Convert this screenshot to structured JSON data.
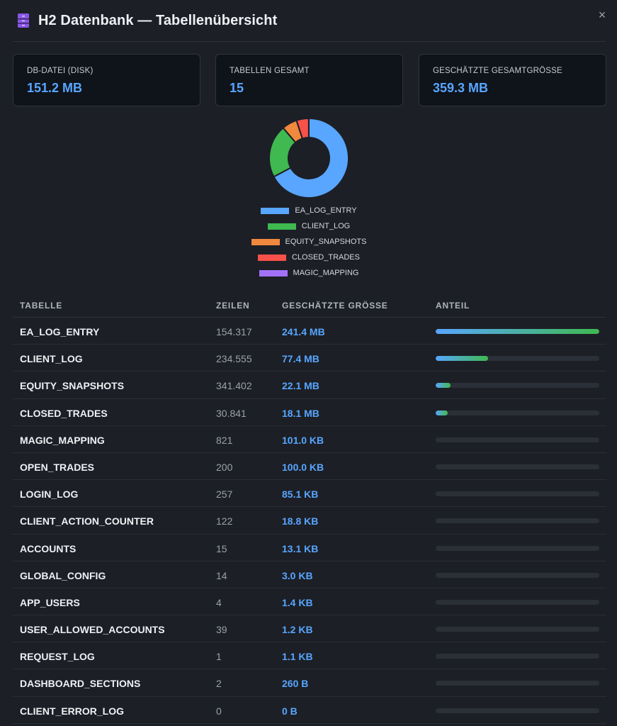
{
  "header": {
    "title": "H2 Datenbank — Tabellenübersicht",
    "close_label": "×"
  },
  "stats": [
    {
      "label": "DB-DATEI (DISK)",
      "value": "151.2 MB"
    },
    {
      "label": "TABELLEN GESAMT",
      "value": "15"
    },
    {
      "label": "GESCHÄTZTE GESAMTGRÖSSE",
      "value": "359.3 MB"
    }
  ],
  "chart_data": {
    "type": "pie",
    "donut": true,
    "categories": [
      "EA_LOG_ENTRY",
      "CLIENT_LOG",
      "EQUITY_SNAPSHOTS",
      "CLOSED_TRADES",
      "MAGIC_MAPPING"
    ],
    "values": [
      241.4,
      77.4,
      22.1,
      18.1,
      0.101
    ],
    "colors": [
      "#58a6ff",
      "#3fb950",
      "#f0883e",
      "#f85149",
      "#a371f7"
    ],
    "legend_placement": "bottom"
  },
  "table": {
    "headers": {
      "name": "TABELLE",
      "rows": "ZEILEN",
      "size": "GESCHÄTZTE GRÖSSE",
      "share": "ANTEIL"
    },
    "rows": [
      {
        "name": "EA_LOG_ENTRY",
        "rows": "154.317",
        "size": "241.4 MB",
        "share": 1.0
      },
      {
        "name": "CLIENT_LOG",
        "rows": "234.555",
        "size": "77.4 MB",
        "share": 0.32
      },
      {
        "name": "EQUITY_SNAPSHOTS",
        "rows": "341.402",
        "size": "22.1 MB",
        "share": 0.09
      },
      {
        "name": "CLOSED_TRADES",
        "rows": "30.841",
        "size": "18.1 MB",
        "share": 0.075
      },
      {
        "name": "MAGIC_MAPPING",
        "rows": "821",
        "size": "101.0 KB",
        "share": 0
      },
      {
        "name": "OPEN_TRADES",
        "rows": "200",
        "size": "100.0 KB",
        "share": 0
      },
      {
        "name": "LOGIN_LOG",
        "rows": "257",
        "size": "85.1 KB",
        "share": 0
      },
      {
        "name": "CLIENT_ACTION_COUNTER",
        "rows": "122",
        "size": "18.8 KB",
        "share": 0
      },
      {
        "name": "ACCOUNTS",
        "rows": "15",
        "size": "13.1 KB",
        "share": 0
      },
      {
        "name": "GLOBAL_CONFIG",
        "rows": "14",
        "size": "3.0 KB",
        "share": 0
      },
      {
        "name": "APP_USERS",
        "rows": "4",
        "size": "1.4 KB",
        "share": 0
      },
      {
        "name": "USER_ALLOWED_ACCOUNTS",
        "rows": "39",
        "size": "1.2 KB",
        "share": 0
      },
      {
        "name": "REQUEST_LOG",
        "rows": "1",
        "size": "1.1 KB",
        "share": 0
      },
      {
        "name": "DASHBOARD_SECTIONS",
        "rows": "2",
        "size": "260 B",
        "share": 0
      },
      {
        "name": "CLIENT_ERROR_LOG",
        "rows": "0",
        "size": "0 B",
        "share": 0
      }
    ]
  },
  "icons": {
    "header": "database-icon",
    "close": "close-icon"
  }
}
